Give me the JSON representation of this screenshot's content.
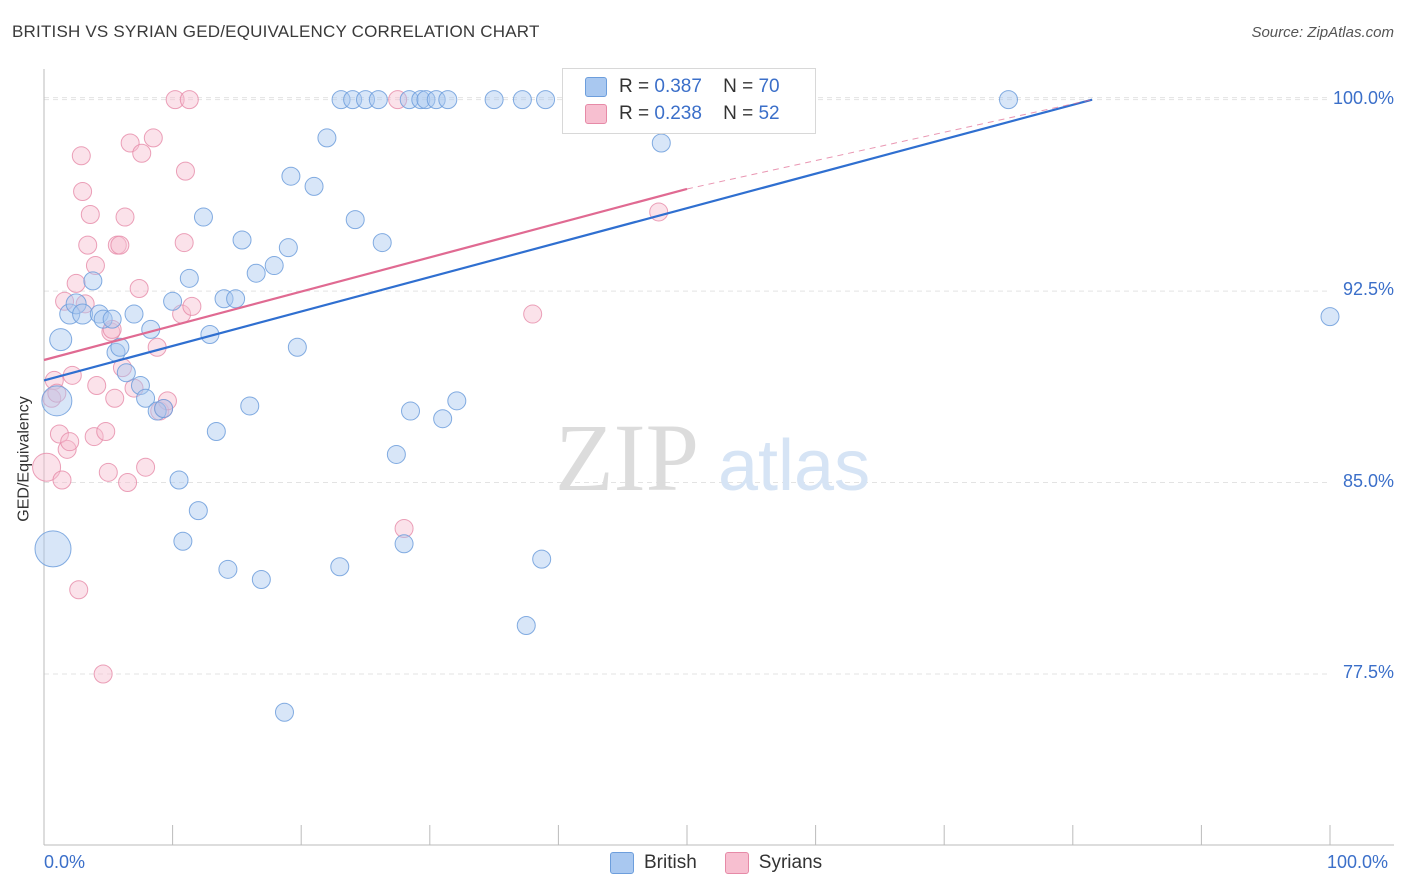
{
  "header": {
    "title": "BRITISH VS SYRIAN GED/EQUIVALENCY CORRELATION CHART",
    "source": "Source: ZipAtlas.com"
  },
  "watermark": {
    "zip": "ZIP",
    "atlas": "atlas"
  },
  "legend": {
    "british": {
      "r_label": "R =",
      "r_value": "0.387",
      "n_label": "N =",
      "n_value": "70"
    },
    "syrians": {
      "r_label": "R =",
      "r_value": "0.238",
      "n_label": "N =",
      "n_value": "52"
    }
  },
  "bottom_legend": {
    "british": "British",
    "syrians": "Syrians"
  },
  "colors": {
    "british_fill": "#a9c8f0",
    "british_stroke": "#6d9edc",
    "british_line": "#2f6fd0",
    "syrian_fill": "#f7bfd0",
    "syrian_stroke": "#e68aa7",
    "syrian_line": "#e06a92",
    "axis_text": "#3b6fc9"
  },
  "chart_data": {
    "type": "scatter",
    "title": "BRITISH VS SYRIAN GED/EQUIVALENCY CORRELATION CHART",
    "xlabel": "",
    "ylabel": "GED/Equivalency",
    "xlim": [
      0,
      100
    ],
    "ylim": [
      70.8,
      101.2
    ],
    "x_tick_labels": [
      "0.0%",
      "100.0%"
    ],
    "y_ticks": [
      77.5,
      85.0,
      92.5,
      100.0
    ],
    "y_tick_labels": [
      "77.5%",
      "85.0%",
      "92.5%",
      "100.0%"
    ],
    "series": [
      {
        "name": "British",
        "trend": {
          "x0": 0,
          "y0": 89.0,
          "x1": 81.5,
          "y1": 100.0
        },
        "points": [
          [
            1.0,
            88.2,
            15
          ],
          [
            0.7,
            82.4,
            18
          ],
          [
            1.3,
            90.6,
            11
          ],
          [
            2.0,
            91.6,
            10
          ],
          [
            2.5,
            92.0,
            10
          ],
          [
            3.0,
            91.6,
            10
          ],
          [
            3.8,
            92.9,
            9
          ],
          [
            4.3,
            91.6,
            9
          ],
          [
            4.6,
            91.4,
            9
          ],
          [
            5.3,
            91.4,
            9
          ],
          [
            5.6,
            90.1,
            9
          ],
          [
            5.9,
            90.3,
            9
          ],
          [
            6.4,
            89.3,
            9
          ],
          [
            7.0,
            91.6,
            9
          ],
          [
            7.5,
            88.8,
            9
          ],
          [
            7.9,
            88.3,
            9
          ],
          [
            8.3,
            91.0,
            9
          ],
          [
            8.8,
            87.8,
            9
          ],
          [
            9.3,
            87.9,
            9
          ],
          [
            10.0,
            92.1,
            9
          ],
          [
            10.5,
            85.1,
            9
          ],
          [
            10.8,
            82.7,
            9
          ],
          [
            11.3,
            93.0,
            9
          ],
          [
            12.0,
            83.9,
            9
          ],
          [
            12.4,
            95.4,
            9
          ],
          [
            12.9,
            90.8,
            9
          ],
          [
            13.4,
            87.0,
            9
          ],
          [
            14.0,
            92.2,
            9
          ],
          [
            14.3,
            81.6,
            9
          ],
          [
            14.9,
            92.2,
            9
          ],
          [
            15.4,
            94.5,
            9
          ],
          [
            16.0,
            88.0,
            9
          ],
          [
            16.5,
            93.2,
            9
          ],
          [
            16.9,
            81.2,
            9
          ],
          [
            17.9,
            93.5,
            9
          ],
          [
            18.7,
            76.0,
            9
          ],
          [
            19.0,
            94.2,
            9
          ],
          [
            19.2,
            97.0,
            9
          ],
          [
            19.7,
            90.3,
            9
          ],
          [
            21.0,
            96.6,
            9
          ],
          [
            22.0,
            98.5,
            9
          ],
          [
            23.0,
            81.7,
            9
          ],
          [
            23.1,
            100.0,
            9
          ],
          [
            24.0,
            100.0,
            9
          ],
          [
            24.2,
            95.3,
            9
          ],
          [
            25.0,
            100.0,
            9
          ],
          [
            26.0,
            100.0,
            9
          ],
          [
            26.3,
            94.4,
            9
          ],
          [
            27.4,
            86.1,
            9
          ],
          [
            28.0,
            82.6,
            9
          ],
          [
            28.4,
            100.0,
            9
          ],
          [
            28.5,
            87.8,
            9
          ],
          [
            29.3,
            100.0,
            9
          ],
          [
            29.7,
            100.0,
            9
          ],
          [
            30.5,
            100.0,
            9
          ],
          [
            31.0,
            87.5,
            9
          ],
          [
            31.4,
            100.0,
            9
          ],
          [
            32.1,
            88.2,
            9
          ],
          [
            35.0,
            100.0,
            9
          ],
          [
            37.2,
            100.0,
            9
          ],
          [
            37.5,
            79.4,
            9
          ],
          [
            38.7,
            82.0,
            9
          ],
          [
            39.0,
            100.0,
            9
          ],
          [
            41.4,
            100.0,
            9
          ],
          [
            43.0,
            100.0,
            9
          ],
          [
            44.2,
            100.0,
            9
          ],
          [
            48.0,
            98.3,
            9
          ],
          [
            51.8,
            100.0,
            9
          ],
          [
            75.0,
            100.0,
            9
          ],
          [
            100.0,
            91.5,
            9
          ]
        ]
      },
      {
        "name": "Syrians",
        "trend": {
          "x0": 0,
          "y0": 89.8,
          "x1": 50.0,
          "y1": 96.5,
          "dash_x1": 81.5,
          "dash_y1": 100.0
        },
        "points": [
          [
            0.2,
            85.6,
            14
          ],
          [
            0.6,
            88.3,
            9
          ],
          [
            0.8,
            89.0,
            9
          ],
          [
            1.0,
            88.5,
            9
          ],
          [
            1.2,
            86.9,
            9
          ],
          [
            1.4,
            85.1,
            9
          ],
          [
            1.6,
            92.1,
            9
          ],
          [
            1.8,
            86.3,
            9
          ],
          [
            2.0,
            86.6,
            9
          ],
          [
            2.2,
            89.2,
            9
          ],
          [
            2.5,
            92.8,
            9
          ],
          [
            2.7,
            80.8,
            9
          ],
          [
            2.9,
            97.8,
            9
          ],
          [
            3.0,
            96.4,
            9
          ],
          [
            3.2,
            92.0,
            9
          ],
          [
            3.4,
            94.3,
            9
          ],
          [
            3.6,
            95.5,
            9
          ],
          [
            3.9,
            86.8,
            9
          ],
          [
            4.0,
            93.5,
            9
          ],
          [
            4.1,
            88.8,
            9
          ],
          [
            4.6,
            77.5,
            9
          ],
          [
            4.8,
            87.0,
            9
          ],
          [
            5.0,
            85.4,
            9
          ],
          [
            5.2,
            90.9,
            9
          ],
          [
            5.3,
            91.0,
            9
          ],
          [
            5.5,
            88.3,
            9
          ],
          [
            5.7,
            94.3,
            9
          ],
          [
            5.9,
            94.3,
            9
          ],
          [
            6.1,
            89.5,
            9
          ],
          [
            6.3,
            95.4,
            9
          ],
          [
            6.5,
            85.0,
            9
          ],
          [
            6.7,
            98.3,
            9
          ],
          [
            7.0,
            88.7,
            9
          ],
          [
            7.4,
            92.6,
            9
          ],
          [
            7.6,
            97.9,
            9
          ],
          [
            7.9,
            85.6,
            9
          ],
          [
            8.5,
            98.5,
            9
          ],
          [
            8.8,
            90.3,
            9
          ],
          [
            9.0,
            87.8,
            9
          ],
          [
            9.3,
            87.9,
            9
          ],
          [
            9.6,
            88.2,
            9
          ],
          [
            10.2,
            100.0,
            9
          ],
          [
            10.7,
            91.6,
            9
          ],
          [
            10.9,
            94.4,
            9
          ],
          [
            11.0,
            97.2,
            9
          ],
          [
            11.3,
            100.0,
            9
          ],
          [
            11.5,
            91.9,
            9
          ],
          [
            27.5,
            100.0,
            9
          ],
          [
            28.0,
            83.2,
            9
          ],
          [
            38.0,
            91.6,
            9
          ],
          [
            46.5,
            100.0,
            9
          ],
          [
            47.8,
            95.6,
            9
          ]
        ]
      }
    ],
    "grid": true,
    "legend_position": "top-center"
  }
}
